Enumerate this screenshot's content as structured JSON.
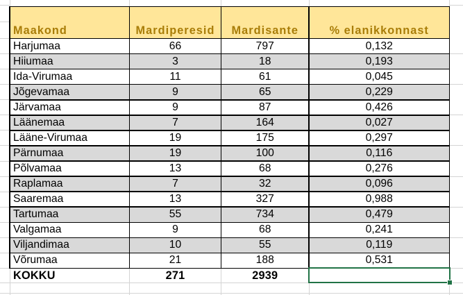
{
  "sheet": {
    "columns": [
      {
        "key": "maakond",
        "header": "Maakond"
      },
      {
        "key": "peresid",
        "header": "Mardiperesid"
      },
      {
        "key": "sante",
        "header": "Mardisante"
      },
      {
        "key": "pct",
        "header": "% elanikkonnast"
      }
    ],
    "rows": [
      {
        "maakond": "Harjumaa",
        "peresid": "66",
        "sante": "797",
        "pct": "0,132"
      },
      {
        "maakond": "Hiiumaa",
        "peresid": "3",
        "sante": "18",
        "pct": "0,193"
      },
      {
        "maakond": "Ida-Virumaa",
        "peresid": "11",
        "sante": "61",
        "pct": "0,045"
      },
      {
        "maakond": "Jõgevamaa",
        "peresid": "9",
        "sante": "65",
        "pct": "0,229"
      },
      {
        "maakond": "Järvamaa",
        "peresid": "9",
        "sante": "87",
        "pct": "0,426"
      },
      {
        "maakond": "Läänemaa",
        "peresid": "7",
        "sante": "164",
        "pct": "0,027"
      },
      {
        "maakond": "Lääne-Virumaa",
        "peresid": "19",
        "sante": "175",
        "pct": "0,297"
      },
      {
        "maakond": "Pärnumaa",
        "peresid": "19",
        "sante": "100",
        "pct": "0,116"
      },
      {
        "maakond": "Põlvamaa",
        "peresid": "13",
        "sante": "68",
        "pct": "0,276"
      },
      {
        "maakond": "Raplamaa",
        "peresid": "7",
        "sante": "32",
        "pct": "0,096"
      },
      {
        "maakond": "Saaremaa",
        "peresid": "13",
        "sante": "327",
        "pct": "0,988"
      },
      {
        "maakond": "Tartumaa",
        "peresid": "55",
        "sante": "734",
        "pct": "0,479"
      },
      {
        "maakond": "Valgamaa",
        "peresid": "9",
        "sante": "68",
        "pct": "0,241"
      },
      {
        "maakond": "Viljandimaa",
        "peresid": "10",
        "sante": "55",
        "pct": "0,119"
      },
      {
        "maakond": "Võrumaa",
        "peresid": "21",
        "sante": "188",
        "pct": "0,531"
      }
    ],
    "totals": {
      "maakond": "KOKKU",
      "peresid": "271",
      "sante": "2939",
      "pct": ""
    }
  },
  "colors": {
    "header_fill": "#FFE699",
    "header_text": "#A97D08",
    "stripe_fill": "#D9D9D9",
    "table_border": "#000000",
    "gridline": "#D4D4D4",
    "selection_border": "#217346"
  }
}
